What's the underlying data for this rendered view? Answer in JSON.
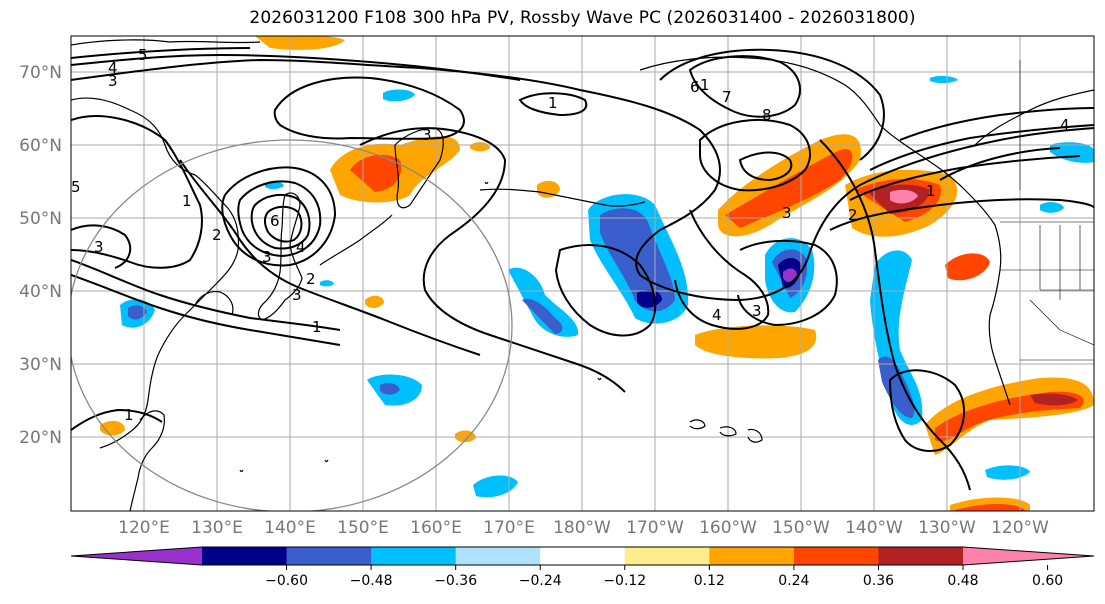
{
  "title": "2026031200 F108 300 hPa PV, Rossby Wave PC (2026031400 - 2026031800)",
  "lat_labels": [
    "70°N",
    "60°N",
    "50°N",
    "40°N",
    "30°N",
    "20°N"
  ],
  "lon_labels": [
    "120°E",
    "130°E",
    "140°E",
    "150°E",
    "160°E",
    "170°E",
    "180°W",
    "170°W",
    "160°W",
    "150°W",
    "140°W",
    "130°W",
    "120°W"
  ],
  "colorbar": {
    "colors": [
      "#9932cc",
      "#00008b",
      "#3a5fcd",
      "#00bfff",
      "#b0e2ff",
      "#ffffff",
      "#ffec8b",
      "#ffa500",
      "#ff4500",
      "#b22222",
      "#ff82ab"
    ],
    "tick_labels": [
      "−0.60",
      "−0.48",
      "−0.36",
      "−0.24",
      "−0.12",
      "0.12",
      "0.24",
      "0.36",
      "0.48",
      "0.60"
    ]
  },
  "contour_labels": [
    "5",
    "4",
    "3",
    "1",
    "1",
    "2",
    "3",
    "3",
    "6",
    "4",
    "3",
    "2",
    "1",
    "1",
    "8",
    "7",
    "6",
    "4",
    "3",
    "4",
    "3",
    "2",
    "1",
    "3",
    "1",
    "5"
  ]
}
